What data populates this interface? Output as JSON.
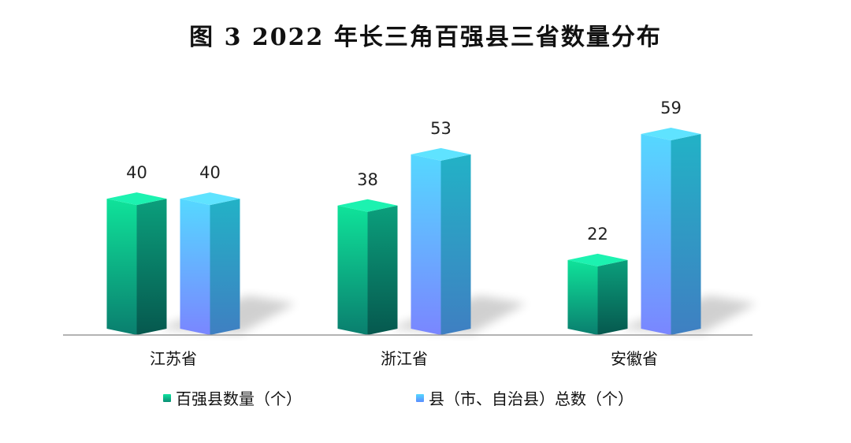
{
  "chart_data": {
    "type": "bar",
    "title": "图 3 2022 年长三角百强县三省数量分布",
    "categories": [
      "江苏省",
      "浙江省",
      "安徽省"
    ],
    "series": [
      {
        "name": "百强县数量（个）",
        "values": [
          40,
          38,
          22
        ],
        "color": "#10c79a"
      },
      {
        "name": "县（市、自治县）总数（个）",
        "values": [
          40,
          53,
          59
        ],
        "color": "#5aaaf5"
      }
    ],
    "ylim": [
      0,
      70
    ],
    "grid": false,
    "legend_position": "bottom"
  }
}
